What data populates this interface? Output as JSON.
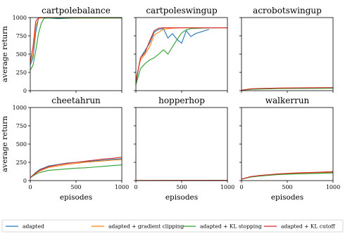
{
  "colors": {
    "adapted": "#1f77b4",
    "adapted_grad_clip": "#ff7f0e",
    "adapted_kl_stop": "#2ca02c",
    "adapted_kl_cutoff": "#d62728"
  },
  "chart_data": {
    "type": "line",
    "grid": false,
    "legend_placement": "bottom",
    "ylabel": "average return",
    "xlabel": "episodes",
    "xlim": [
      0,
      1000
    ],
    "ylim": [
      0,
      1000
    ],
    "xticks": [
      0,
      500,
      1000
    ],
    "yticks": [
      0,
      250,
      500,
      750,
      1000
    ],
    "legend": [
      {
        "key": "adapted",
        "label": "adapted"
      },
      {
        "key": "adapted_grad_clip",
        "label": "adapted + gradient clipping"
      },
      {
        "key": "adapted_kl_stop",
        "label": "adapted + KL stopping"
      },
      {
        "key": "adapted_kl_cutoff",
        "label": "adapted + KL cutoff"
      }
    ],
    "panels": [
      {
        "title": "cartpolebalance",
        "series": [
          {
            "key": "adapted",
            "x": [
              0,
              30,
              60,
              90,
              120,
              200,
              300,
              400,
              500,
              600,
              800,
              1000
            ],
            "y": [
              350,
              450,
              800,
              990,
              1000,
              995,
              985,
              990,
              995,
              995,
              995,
              995
            ]
          },
          {
            "key": "adapted_grad_clip",
            "x": [
              0,
              30,
              60,
              90,
              120,
              200,
              400,
              600,
              800,
              1000
            ],
            "y": [
              380,
              500,
              880,
              990,
              995,
              995,
              995,
              995,
              995,
              995
            ]
          },
          {
            "key": "adapted_kl_stop",
            "x": [
              0,
              30,
              60,
              90,
              120,
              150,
              200,
              400,
              600,
              800,
              1000
            ],
            "y": [
              280,
              350,
              550,
              780,
              920,
              990,
              995,
              995,
              995,
              995,
              995
            ]
          },
          {
            "key": "adapted_kl_cutoff",
            "x": [
              0,
              30,
              60,
              90,
              120,
              200,
              400,
              600,
              800,
              1000
            ],
            "y": [
              400,
              600,
              950,
              995,
              1000,
              1000,
              1000,
              1000,
              1000,
              1000
            ]
          }
        ]
      },
      {
        "title": "cartpoleswingup",
        "series": [
          {
            "key": "adapted",
            "x": [
              0,
              50,
              100,
              150,
              200,
              250,
              300,
              350,
              400,
              450,
              500,
              550,
              600,
              650,
              700,
              750,
              800
            ],
            "y": [
              100,
              450,
              550,
              650,
              800,
              840,
              850,
              720,
              780,
              700,
              650,
              820,
              740,
              780,
              800,
              820,
              840
            ]
          },
          {
            "key": "adapted_grad_clip",
            "x": [
              0,
              50,
              100,
              150,
              200,
              250,
              300,
              400,
              500,
              600,
              700,
              800,
              900,
              1000
            ],
            "y": [
              150,
              420,
              500,
              600,
              760,
              800,
              840,
              855,
              860,
              860,
              860,
              860,
              860,
              860
            ]
          },
          {
            "key": "adapted_kl_stop",
            "x": [
              0,
              50,
              100,
              150,
              200,
              250,
              300,
              350,
              400,
              450,
              500,
              550,
              600,
              700,
              800,
              1000
            ],
            "y": [
              80,
              300,
              370,
              420,
              450,
              500,
              560,
              500,
              600,
              700,
              790,
              830,
              850,
              855,
              860,
              860
            ]
          },
          {
            "key": "adapted_kl_cutoff",
            "x": [
              0,
              50,
              100,
              150,
              200,
              250,
              300,
              400,
              500,
              600,
              800,
              1000
            ],
            "y": [
              120,
              450,
              520,
              680,
              820,
              855,
              860,
              860,
              860,
              860,
              860,
              860
            ]
          }
        ]
      },
      {
        "title": "acrobotswingup",
        "series": [
          {
            "key": "adapted",
            "x": [
              0,
              100,
              200,
              400,
              600,
              800,
              1000
            ],
            "y": [
              5,
              20,
              25,
              30,
              32,
              33,
              35
            ]
          },
          {
            "key": "adapted_grad_clip",
            "x": [
              0,
              100,
              200,
              400,
              600,
              800,
              1000
            ],
            "y": [
              5,
              22,
              28,
              33,
              35,
              36,
              38
            ]
          },
          {
            "key": "adapted_kl_stop",
            "x": [
              0,
              100,
              200,
              400,
              600,
              800,
              1000
            ],
            "y": [
              5,
              18,
              22,
              28,
              30,
              32,
              33
            ]
          },
          {
            "key": "adapted_kl_cutoff",
            "x": [
              0,
              100,
              200,
              400,
              600,
              800,
              1000
            ],
            "y": [
              5,
              25,
              30,
              35,
              38,
              40,
              42
            ]
          }
        ]
      },
      {
        "title": "cheetahrun",
        "series": [
          {
            "key": "adapted",
            "x": [
              0,
              50,
              100,
              200,
              300,
              400,
              500,
              600,
              700,
              800,
              900,
              1000
            ],
            "y": [
              40,
              100,
              150,
              200,
              220,
              240,
              250,
              260,
              270,
              280,
              290,
              300
            ]
          },
          {
            "key": "adapted_grad_clip",
            "x": [
              0,
              50,
              100,
              200,
              300,
              400,
              500,
              600,
              700,
              800,
              900,
              1000
            ],
            "y": [
              40,
              90,
              130,
              180,
              200,
              220,
              235,
              250,
              260,
              270,
              280,
              285
            ]
          },
          {
            "key": "adapted_kl_stop",
            "x": [
              0,
              50,
              100,
              200,
              300,
              400,
              500,
              600,
              700,
              800,
              900,
              1000
            ],
            "y": [
              40,
              80,
              110,
              140,
              150,
              160,
              170,
              175,
              185,
              195,
              205,
              215
            ]
          },
          {
            "key": "adapted_kl_cutoff",
            "x": [
              0,
              50,
              100,
              200,
              300,
              400,
              500,
              600,
              700,
              800,
              900,
              1000
            ],
            "y": [
              40,
              95,
              140,
              190,
              215,
              235,
              250,
              265,
              280,
              295,
              305,
              320
            ]
          }
        ]
      },
      {
        "title": "hopperhop",
        "series": [
          {
            "key": "adapted",
            "x": [
              0,
              500,
              1000
            ],
            "y": [
              1,
              1,
              2
            ]
          },
          {
            "key": "adapted_grad_clip",
            "x": [
              0,
              500,
              1000
            ],
            "y": [
              1,
              2,
              2
            ]
          },
          {
            "key": "adapted_kl_stop",
            "x": [
              0,
              500,
              1000
            ],
            "y": [
              0,
              1,
              1
            ]
          },
          {
            "key": "adapted_kl_cutoff",
            "x": [
              0,
              500,
              1000
            ],
            "y": [
              1,
              2,
              3
            ]
          }
        ]
      },
      {
        "title": "walkerrun",
        "series": [
          {
            "key": "adapted",
            "x": [
              0,
              100,
              200,
              400,
              600,
              800,
              1000
            ],
            "y": [
              20,
              50,
              65,
              85,
              95,
              100,
              110
            ]
          },
          {
            "key": "adapted_grad_clip",
            "x": [
              0,
              100,
              200,
              400,
              600,
              800,
              1000
            ],
            "y": [
              20,
              52,
              68,
              88,
              100,
              108,
              118
            ]
          },
          {
            "key": "adapted_kl_stop",
            "x": [
              0,
              100,
              200,
              400,
              600,
              800,
              1000
            ],
            "y": [
              20,
              48,
              62,
              82,
              92,
              98,
              105
            ]
          },
          {
            "key": "adapted_kl_cutoff",
            "x": [
              0,
              100,
              200,
              400,
              600,
              800,
              1000
            ],
            "y": [
              20,
              55,
              70,
              92,
              105,
              112,
              122
            ]
          }
        ]
      }
    ]
  }
}
